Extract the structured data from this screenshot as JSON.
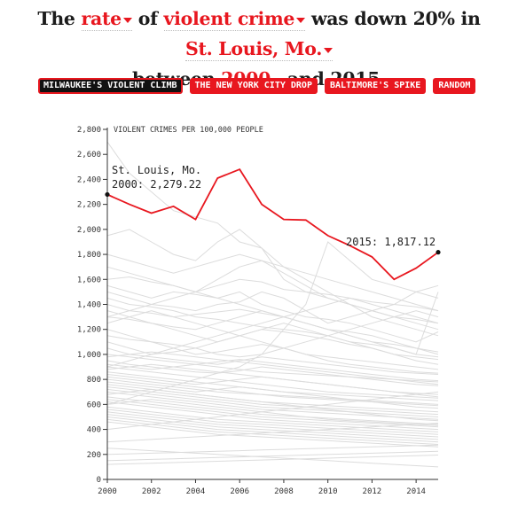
{
  "headline": {
    "p1": "The ",
    "measure": "rate",
    "p2": " of ",
    "crime": "violent crime",
    "p3": " was down 20% in ",
    "city": "St. Louis, Mo.",
    "p4": "between ",
    "year": "2000",
    "p5": " and 2015."
  },
  "buttons": [
    {
      "label": "MILWAUKEE'S VIOLENT CLIMB",
      "active": true
    },
    {
      "label": "THE NEW YORK CITY DROP"
    },
    {
      "label": "BALTIMORE'S SPIKE"
    },
    {
      "label": "RANDOM"
    }
  ],
  "colors": {
    "accent": "#e8171f",
    "background_lines": "#dcdcdc",
    "text": "#1c1c1c"
  },
  "chart_data": {
    "type": "line",
    "ylabel": "VIOLENT CRIMES PER 100,000 PEOPLE",
    "ylim": [
      0,
      2800
    ],
    "xlim": [
      2000,
      2015
    ],
    "x": [
      2000,
      2001,
      2002,
      2003,
      2004,
      2005,
      2006,
      2007,
      2008,
      2009,
      2010,
      2011,
      2012,
      2013,
      2014,
      2015
    ],
    "x_ticks": [
      2000,
      2002,
      2004,
      2006,
      2008,
      2010,
      2012,
      2014
    ],
    "y_ticks": [
      0,
      200,
      400,
      600,
      800,
      1000,
      1200,
      1400,
      1600,
      1800,
      2000,
      2200,
      2400,
      2600,
      2800
    ],
    "highlight": {
      "name": "St. Louis, Mo.",
      "values": [
        2279.22,
        2200,
        2130,
        2185,
        2080,
        2410,
        2480,
        2200,
        2080,
        2075,
        1950,
        1870,
        1780,
        1600,
        1690,
        1817.12
      ],
      "start_label": "St. Louis, Mo.",
      "start_value_label": "2000: 2,279.22",
      "end_value_label": "2015: 1,817.12"
    },
    "background_series": [
      [
        2700,
        2450,
        2300,
        2150,
        2100,
        2050,
        1900,
        1850,
        1700,
        1600,
        1500,
        1400,
        1350,
        1300,
        1280,
        1250
      ],
      [
        1950,
        2000,
        1900,
        1800,
        1750,
        1900,
        2000,
        1850,
        1600,
        1500,
        1450,
        1400,
        1300,
        1250,
        1200,
        1150
      ],
      [
        1800,
        1750,
        1700,
        1650,
        1700,
        1750,
        1800,
        1750,
        1700,
        1650,
        1600,
        1550,
        1500,
        1450,
        1400,
        1350
      ],
      [
        1600,
        1620,
        1580,
        1550,
        1500,
        1550,
        1600,
        1580,
        1520,
        1500,
        1480,
        1450,
        1420,
        1400,
        1380,
        1350
      ],
      [
        1550,
        1500,
        1450,
        1500,
        1480,
        1450,
        1500,
        1400,
        1350,
        1300,
        1280,
        1250,
        1200,
        1150,
        1100,
        1180
      ],
      [
        1500,
        1450,
        1400,
        1380,
        1350,
        1400,
        1420,
        1500,
        1450,
        1350,
        1250,
        1300,
        1350,
        1400,
        1500,
        1550
      ],
      [
        1450,
        1400,
        1380,
        1350,
        1300,
        1280,
        1250,
        1220,
        1200,
        1180,
        1150,
        1100,
        1080,
        1050,
        1000,
        980
      ],
      [
        1400,
        1350,
        1330,
        1300,
        1320,
        1340,
        1360,
        1330,
        1300,
        1250,
        1200,
        1150,
        1100,
        1080,
        1050,
        1020
      ],
      [
        1350,
        1300,
        1250,
        1220,
        1200,
        1250,
        1300,
        1350,
        1300,
        1250,
        1200,
        1180,
        1150,
        1100,
        1050,
        1000
      ],
      [
        1300,
        1280,
        1250,
        1200,
        1150,
        1100,
        1150,
        1200,
        1180,
        1150,
        1120,
        1080,
        1050,
        1000,
        980,
        960
      ],
      [
        1250,
        1300,
        1350,
        1300,
        1250,
        1200,
        1150,
        1200,
        1250,
        1200,
        1150,
        1100,
        1050,
        1000,
        950,
        920
      ],
      [
        1200,
        1150,
        1100,
        1080,
        1050,
        1000,
        980,
        1000,
        1050,
        1100,
        1150,
        1200,
        1250,
        1300,
        1350,
        1300
      ],
      [
        1150,
        1120,
        1100,
        1050,
        1000,
        1020,
        1050,
        1080,
        1050,
        1000,
        950,
        920,
        900,
        880,
        860,
        850
      ],
      [
        1100,
        1050,
        1000,
        1020,
        1050,
        1100,
        1150,
        1100,
        1050,
        1000,
        980,
        960,
        940,
        920,
        900,
        880
      ],
      [
        1050,
        1000,
        980,
        960,
        940,
        920,
        950,
        980,
        960,
        940,
        920,
        900,
        880,
        860,
        850,
        840
      ],
      [
        1000,
        980,
        960,
        940,
        920,
        900,
        880,
        860,
        850,
        840,
        830,
        820,
        810,
        800,
        790,
        780
      ],
      [
        980,
        1000,
        1020,
        1000,
        980,
        960,
        940,
        920,
        900,
        880,
        860,
        840,
        820,
        800,
        780,
        760
      ],
      [
        950,
        920,
        900,
        880,
        860,
        850,
        870,
        900,
        880,
        860,
        840,
        820,
        800,
        780,
        760,
        750
      ],
      [
        920,
        900,
        880,
        900,
        920,
        940,
        960,
        940,
        920,
        900,
        880,
        860,
        840,
        820,
        800,
        790
      ],
      [
        900,
        880,
        860,
        840,
        820,
        800,
        780,
        760,
        740,
        720,
        700,
        690,
        680,
        670,
        660,
        650
      ],
      [
        880,
        900,
        920,
        900,
        880,
        860,
        840,
        820,
        800,
        780,
        760,
        740,
        720,
        700,
        690,
        680
      ],
      [
        860,
        840,
        820,
        800,
        780,
        760,
        740,
        720,
        700,
        690,
        680,
        670,
        660,
        650,
        640,
        630
      ],
      [
        840,
        820,
        800,
        780,
        760,
        780,
        800,
        820,
        800,
        780,
        760,
        740,
        720,
        700,
        680,
        660
      ],
      [
        820,
        800,
        780,
        760,
        740,
        720,
        700,
        680,
        660,
        650,
        640,
        630,
        620,
        610,
        600,
        590
      ],
      [
        800,
        780,
        760,
        740,
        720,
        700,
        690,
        680,
        670,
        660,
        650,
        640,
        630,
        620,
        610,
        600
      ],
      [
        780,
        760,
        740,
        720,
        700,
        720,
        740,
        720,
        700,
        680,
        660,
        640,
        620,
        600,
        580,
        570
      ],
      [
        760,
        740,
        720,
        700,
        680,
        660,
        640,
        620,
        610,
        600,
        590,
        580,
        570,
        560,
        550,
        540
      ],
      [
        740,
        720,
        700,
        680,
        660,
        640,
        620,
        600,
        590,
        580,
        570,
        560,
        550,
        540,
        530,
        520
      ],
      [
        720,
        700,
        680,
        660,
        640,
        620,
        600,
        580,
        570,
        560,
        550,
        540,
        530,
        520,
        510,
        500
      ],
      [
        700,
        680,
        660,
        640,
        620,
        600,
        580,
        560,
        550,
        540,
        530,
        520,
        510,
        500,
        490,
        480
      ],
      [
        680,
        700,
        720,
        700,
        680,
        660,
        640,
        620,
        600,
        580,
        560,
        540,
        520,
        500,
        480,
        470
      ],
      [
        660,
        640,
        620,
        600,
        580,
        560,
        540,
        520,
        510,
        500,
        490,
        480,
        470,
        460,
        450,
        440
      ],
      [
        640,
        620,
        600,
        580,
        560,
        540,
        520,
        500,
        490,
        480,
        470,
        460,
        450,
        440,
        430,
        420
      ],
      [
        620,
        600,
        580,
        560,
        540,
        520,
        500,
        480,
        470,
        460,
        450,
        440,
        430,
        420,
        410,
        400
      ],
      [
        600,
        620,
        640,
        620,
        600,
        580,
        560,
        540,
        520,
        500,
        480,
        470,
        460,
        450,
        440,
        430
      ],
      [
        580,
        560,
        540,
        520,
        500,
        480,
        470,
        460,
        450,
        440,
        430,
        420,
        410,
        400,
        390,
        380
      ],
      [
        560,
        540,
        520,
        500,
        480,
        460,
        450,
        440,
        430,
        420,
        410,
        400,
        390,
        380,
        370,
        360
      ],
      [
        540,
        520,
        500,
        480,
        460,
        440,
        430,
        420,
        410,
        400,
        390,
        380,
        370,
        360,
        350,
        340
      ],
      [
        520,
        500,
        480,
        460,
        440,
        420,
        410,
        400,
        390,
        380,
        370,
        360,
        350,
        340,
        330,
        320
      ],
      [
        500,
        480,
        460,
        440,
        420,
        400,
        390,
        380,
        370,
        360,
        350,
        340,
        330,
        320,
        310,
        300
      ],
      [
        480,
        460,
        440,
        420,
        400,
        380,
        370,
        360,
        350,
        340,
        330,
        320,
        310,
        300,
        290,
        280
      ],
      [
        460,
        440,
        420,
        400,
        380,
        360,
        350,
        340,
        330,
        320,
        310,
        300,
        290,
        280,
        270,
        260
      ],
      [
        1700,
        1650,
        1600,
        1550,
        1500,
        1450,
        1400,
        1350,
        1300,
        1250,
        1200,
        1150,
        1100,
        1050,
        1000,
        1500
      ],
      [
        600,
        650,
        700,
        750,
        800,
        850,
        900,
        1000,
        1200,
        1400,
        1900,
        1750,
        1600,
        1550,
        1500,
        1450
      ],
      [
        1300,
        1350,
        1400,
        1450,
        1500,
        1600,
        1700,
        1750,
        1650,
        1550,
        1450,
        1400,
        1350,
        1300,
        1250,
        1200
      ],
      [
        900,
        950,
        1000,
        1050,
        1100,
        1150,
        1200,
        1250,
        1300,
        1350,
        1400,
        1450,
        1400,
        1350,
        1300,
        1250
      ],
      [
        400,
        420,
        440,
        460,
        480,
        500,
        520,
        540,
        560,
        580,
        600,
        620,
        640,
        660,
        680,
        700
      ],
      [
        300,
        310,
        320,
        330,
        340,
        350,
        360,
        370,
        380,
        390,
        400,
        410,
        420,
        430,
        440,
        450
      ],
      [
        250,
        240,
        230,
        220,
        210,
        200,
        190,
        180,
        170,
        160,
        150,
        140,
        130,
        120,
        110,
        100
      ],
      [
        200,
        205,
        210,
        215,
        220,
        225,
        230,
        235,
        240,
        245,
        250,
        255,
        260,
        265,
        270,
        275
      ],
      [
        150,
        155,
        160,
        165,
        170,
        175,
        180,
        185,
        190,
        195,
        200,
        205,
        210,
        215,
        220,
        225
      ],
      [
        120,
        125,
        130,
        135,
        140,
        145,
        150,
        155,
        160,
        165,
        170,
        175,
        180,
        185,
        190,
        195
      ]
    ]
  }
}
